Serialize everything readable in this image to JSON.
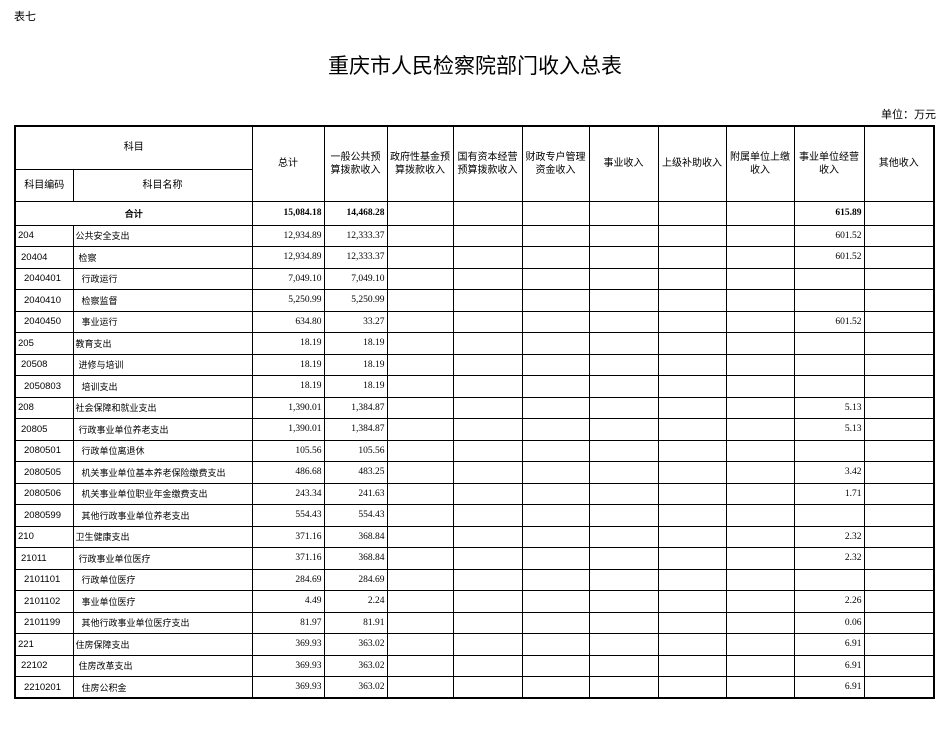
{
  "page_label": "表七",
  "title": "重庆市人民检察院部门收入总表",
  "unit": "单位：万元",
  "headers": {
    "subject": "科目",
    "code": "科目编码",
    "name": "科目名称",
    "cols": [
      "总计",
      "一般公共预算拨款收入",
      "政府性基金预算拨款收入",
      "国有资本经营预算拨款收入",
      "财政专户管理资金收入",
      "事业收入",
      "上级补助收入",
      "附属单位上缴收入",
      "事业单位经营收入",
      "其他收入"
    ]
  },
  "total_row": {
    "label": "合计",
    "total": "15,084.18",
    "general": "14,468.28",
    "business": "615.89"
  },
  "rows": [
    {
      "code": "204",
      "name": "公共安全支出",
      "level": 1,
      "total": "12,934.89",
      "general": "12,333.37",
      "business": "601.52"
    },
    {
      "code": "20404",
      "name": "检察",
      "level": 2,
      "total": "12,934.89",
      "general": "12,333.37",
      "business": "601.52"
    },
    {
      "code": "2040401",
      "name": "行政运行",
      "level": 3,
      "total": "7,049.10",
      "general": "7,049.10",
      "business": ""
    },
    {
      "code": "2040410",
      "name": "检察监督",
      "level": 3,
      "total": "5,250.99",
      "general": "5,250.99",
      "business": ""
    },
    {
      "code": "2040450",
      "name": "事业运行",
      "level": 3,
      "total": "634.80",
      "general": "33.27",
      "business": "601.52"
    },
    {
      "code": "205",
      "name": "教育支出",
      "level": 1,
      "total": "18.19",
      "general": "18.19",
      "business": ""
    },
    {
      "code": "20508",
      "name": "进修与培训",
      "level": 2,
      "total": "18.19",
      "general": "18.19",
      "business": ""
    },
    {
      "code": "2050803",
      "name": "培训支出",
      "level": 3,
      "total": "18.19",
      "general": "18.19",
      "business": ""
    },
    {
      "code": "208",
      "name": "社会保障和就业支出",
      "level": 1,
      "total": "1,390.01",
      "general": "1,384.87",
      "business": "5.13"
    },
    {
      "code": "20805",
      "name": "行政事业单位养老支出",
      "level": 2,
      "total": "1,390.01",
      "general": "1,384.87",
      "business": "5.13"
    },
    {
      "code": "2080501",
      "name": "行政单位离退休",
      "level": 3,
      "total": "105.56",
      "general": "105.56",
      "business": ""
    },
    {
      "code": "2080505",
      "name": "机关事业单位基本养老保险缴费支出",
      "level": 3,
      "total": "486.68",
      "general": "483.25",
      "business": "3.42"
    },
    {
      "code": "2080506",
      "name": "机关事业单位职业年金缴费支出",
      "level": 3,
      "total": "243.34",
      "general": "241.63",
      "business": "1.71"
    },
    {
      "code": "2080599",
      "name": "其他行政事业单位养老支出",
      "level": 3,
      "total": "554.43",
      "general": "554.43",
      "business": ""
    },
    {
      "code": "210",
      "name": "卫生健康支出",
      "level": 1,
      "total": "371.16",
      "general": "368.84",
      "business": "2.32"
    },
    {
      "code": "21011",
      "name": "行政事业单位医疗",
      "level": 2,
      "total": "371.16",
      "general": "368.84",
      "business": "2.32"
    },
    {
      "code": "2101101",
      "name": "行政单位医疗",
      "level": 3,
      "total": "284.69",
      "general": "284.69",
      "business": ""
    },
    {
      "code": "2101102",
      "name": "事业单位医疗",
      "level": 3,
      "total": "4.49",
      "general": "2.24",
      "business": "2.26"
    },
    {
      "code": "2101199",
      "name": "其他行政事业单位医疗支出",
      "level": 3,
      "total": "81.97",
      "general": "81.91",
      "business": "0.06"
    },
    {
      "code": "221",
      "name": "住房保障支出",
      "level": 1,
      "total": "369.93",
      "general": "363.02",
      "business": "6.91"
    },
    {
      "code": "22102",
      "name": "住房改革支出",
      "level": 2,
      "total": "369.93",
      "general": "363.02",
      "business": "6.91"
    },
    {
      "code": "2210201",
      "name": "住房公积金",
      "level": 3,
      "total": "369.93",
      "general": "363.02",
      "business": "6.91"
    }
  ]
}
